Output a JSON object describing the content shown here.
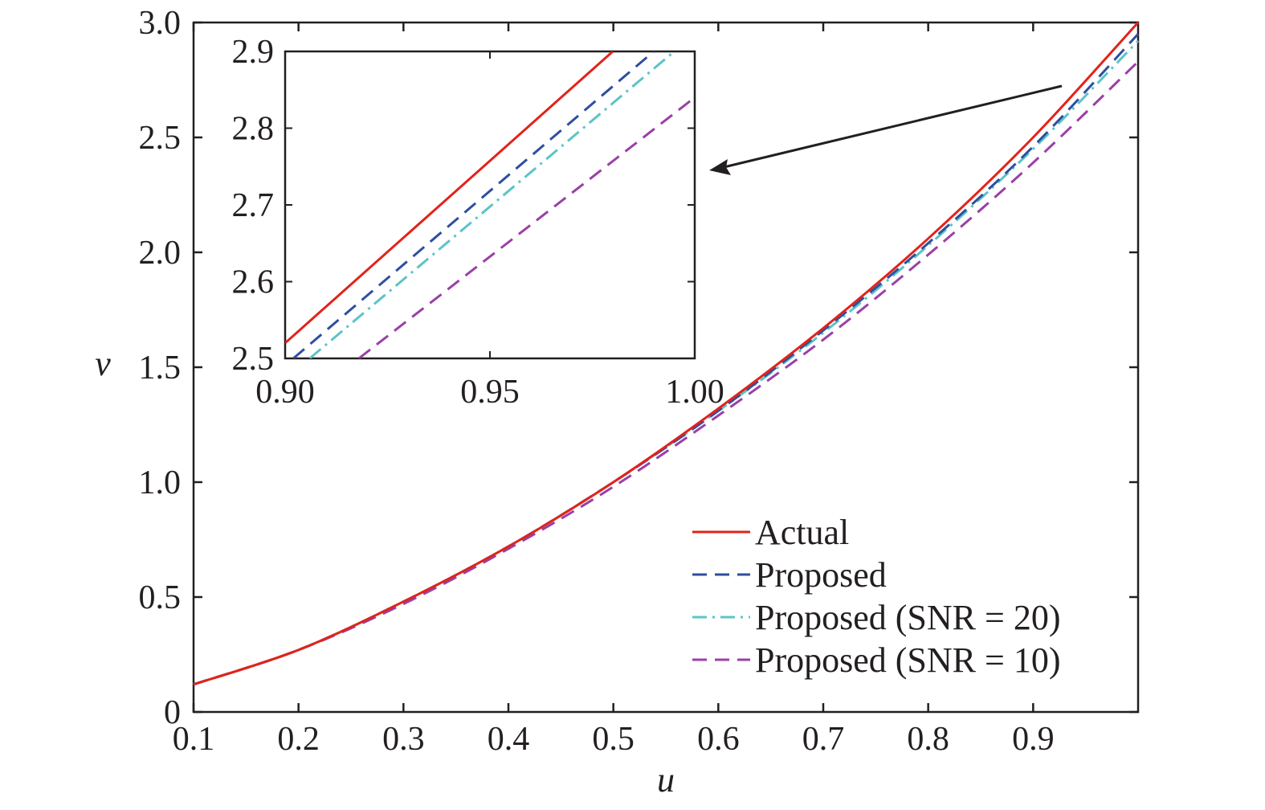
{
  "chart_data": {
    "type": "line",
    "title": "",
    "xlabel": "u",
    "ylabel": "v",
    "xlim": [
      0.1,
      1.0
    ],
    "ylim": [
      0,
      3.0
    ],
    "xticks": [
      "0.1",
      "0.2",
      "0.3",
      "0.4",
      "0.5",
      "0.6",
      "0.7",
      "0.8",
      "0.9"
    ],
    "yticks": [
      "0",
      "0.5",
      "1.0",
      "1.5",
      "2.0",
      "2.5",
      "3.0"
    ],
    "grid": false,
    "legend_position": "bottom-right",
    "series": [
      {
        "name": "Actual",
        "color": "#e2231a",
        "style": "solid",
        "x": [
          0.1,
          0.2,
          0.3,
          0.4,
          0.5,
          0.6,
          0.7,
          0.8,
          0.9,
          1.0
        ],
        "y": [
          0.12,
          0.27,
          0.48,
          0.72,
          1.0,
          1.32,
          1.67,
          2.06,
          2.5,
          3.0
        ]
      },
      {
        "name": "Proposed",
        "color": "#2e4fa0",
        "style": "dashed",
        "x": [
          0.1,
          0.2,
          0.3,
          0.4,
          0.5,
          0.6,
          0.7,
          0.8,
          0.9,
          1.0
        ],
        "y": [
          0.12,
          0.27,
          0.48,
          0.72,
          1.0,
          1.31,
          1.66,
          2.04,
          2.46,
          2.95
        ]
      },
      {
        "name": "Proposed (SNR = 20)",
        "color": "#5bc4c8",
        "style": "dashdot",
        "x": [
          0.1,
          0.2,
          0.3,
          0.4,
          0.5,
          0.6,
          0.7,
          0.8,
          0.9,
          1.0
        ],
        "y": [
          0.12,
          0.27,
          0.48,
          0.72,
          1.0,
          1.31,
          1.65,
          2.03,
          2.45,
          2.92
        ]
      },
      {
        "name": "Proposed (SNR = 10)",
        "color": "#9b3fa6",
        "style": "dashed",
        "x": [
          0.1,
          0.2,
          0.3,
          0.4,
          0.5,
          0.6,
          0.7,
          0.8,
          0.9,
          1.0
        ],
        "y": [
          0.12,
          0.27,
          0.47,
          0.71,
          0.98,
          1.29,
          1.62,
          1.99,
          2.39,
          2.83
        ]
      }
    ],
    "inset": {
      "xlim": [
        0.9,
        1.0
      ],
      "ylim": [
        2.5,
        2.9
      ],
      "xticks": [
        "0.90",
        "0.95",
        "1.00"
      ],
      "yticks": [
        "2.5",
        "2.6",
        "2.7",
        "2.8",
        "2.9"
      ],
      "series": [
        {
          "name": "Actual",
          "x": [
            0.9,
            0.98
          ],
          "y": [
            2.52,
            2.9
          ]
        },
        {
          "name": "Proposed",
          "x": [
            0.902,
            0.99
          ],
          "y": [
            2.5,
            2.9
          ]
        },
        {
          "name": "Proposed (SNR = 20)",
          "x": [
            0.906,
            0.995
          ],
          "y": [
            2.5,
            2.9
          ]
        },
        {
          "name": "Proposed (SNR = 10)",
          "x": [
            0.918,
            1.0
          ],
          "y": [
            2.5,
            2.84
          ]
        }
      ]
    }
  }
}
